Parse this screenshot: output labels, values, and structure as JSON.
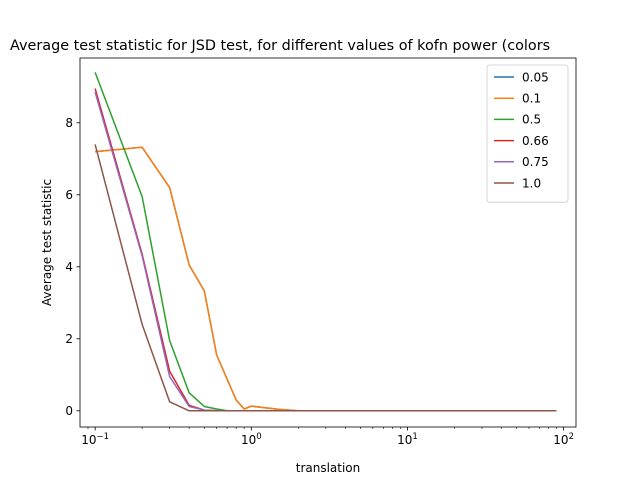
{
  "chart_data": {
    "type": "line",
    "title": "Average test statistic for JSD test, for different values of kofn power (colors",
    "xlabel": "translation",
    "ylabel": "Average test statistic",
    "xscale": "log",
    "xlim": [
      0.08,
      120
    ],
    "ylim": [
      -0.45,
      9.8
    ],
    "x_ticks": [
      {
        "value": 0.1,
        "base": "10",
        "exp": "−1"
      },
      {
        "value": 1,
        "base": "10",
        "exp": "0"
      },
      {
        "value": 10,
        "base": "10",
        "exp": "1"
      },
      {
        "value": 100,
        "base": "10",
        "exp": "2"
      }
    ],
    "y_ticks": [
      {
        "value": 0,
        "label": "0"
      },
      {
        "value": 2,
        "label": "2"
      },
      {
        "value": 4,
        "label": "4"
      },
      {
        "value": 6,
        "label": "6"
      },
      {
        "value": 8,
        "label": "8"
      }
    ],
    "legend_position": "top-right",
    "series": [
      {
        "name": "0.05",
        "color": "#1f77b4",
        "x": [
          0.1,
          0.2,
          0.3,
          0.4,
          0.5,
          0.6,
          0.8,
          0.9,
          1.0,
          1.5,
          2,
          5,
          10,
          20,
          50,
          90
        ],
        "y": [
          7.2,
          7.32,
          6.2,
          4.05,
          3.33,
          1.55,
          0.3,
          0.05,
          0.13,
          0.04,
          0.0,
          0.0,
          0.0,
          0.0,
          0.0,
          0.0
        ]
      },
      {
        "name": "0.1",
        "color": "#ff7f0e",
        "x": [
          0.1,
          0.2,
          0.3,
          0.4,
          0.5,
          0.6,
          0.8,
          0.9,
          1.0,
          1.5,
          2,
          5,
          10,
          20,
          50,
          90
        ],
        "y": [
          7.2,
          7.32,
          6.2,
          4.05,
          3.33,
          1.55,
          0.3,
          0.05,
          0.13,
          0.04,
          0.0,
          0.0,
          0.0,
          0.0,
          0.0,
          0.0
        ]
      },
      {
        "name": "0.5",
        "color": "#2ca02c",
        "x": [
          0.1,
          0.2,
          0.3,
          0.4,
          0.5,
          0.6,
          0.7,
          1.0,
          2,
          5,
          10,
          20,
          50,
          90
        ],
        "y": [
          9.4,
          5.95,
          1.95,
          0.5,
          0.12,
          0.05,
          0.0,
          0.0,
          0.0,
          0.0,
          0.0,
          0.0,
          0.0,
          0.0
        ]
      },
      {
        "name": "0.66",
        "color": "#d62728",
        "x": [
          0.1,
          0.2,
          0.3,
          0.4,
          0.5,
          0.6,
          1.0,
          2,
          5,
          10,
          20,
          50,
          90
        ],
        "y": [
          8.95,
          4.35,
          1.1,
          0.15,
          0.02,
          0.0,
          0.0,
          0.0,
          0.0,
          0.0,
          0.0,
          0.0,
          0.0
        ]
      },
      {
        "name": "0.75",
        "color": "#9467bd",
        "x": [
          0.1,
          0.2,
          0.3,
          0.4,
          0.5,
          0.6,
          1.0,
          2,
          5,
          10,
          20,
          50,
          90
        ],
        "y": [
          8.85,
          4.3,
          0.95,
          0.12,
          0.02,
          0.0,
          0.0,
          0.0,
          0.0,
          0.0,
          0.0,
          0.0,
          0.0
        ]
      },
      {
        "name": "1.0",
        "color": "#8c564b",
        "x": [
          0.1,
          0.2,
          0.3,
          0.4,
          0.5,
          1.0,
          2,
          5,
          10,
          20,
          50,
          90
        ],
        "y": [
          7.4,
          2.4,
          0.25,
          0.0,
          0.0,
          0.0,
          0.0,
          0.0,
          0.0,
          0.0,
          0.0,
          0.0
        ]
      }
    ]
  }
}
